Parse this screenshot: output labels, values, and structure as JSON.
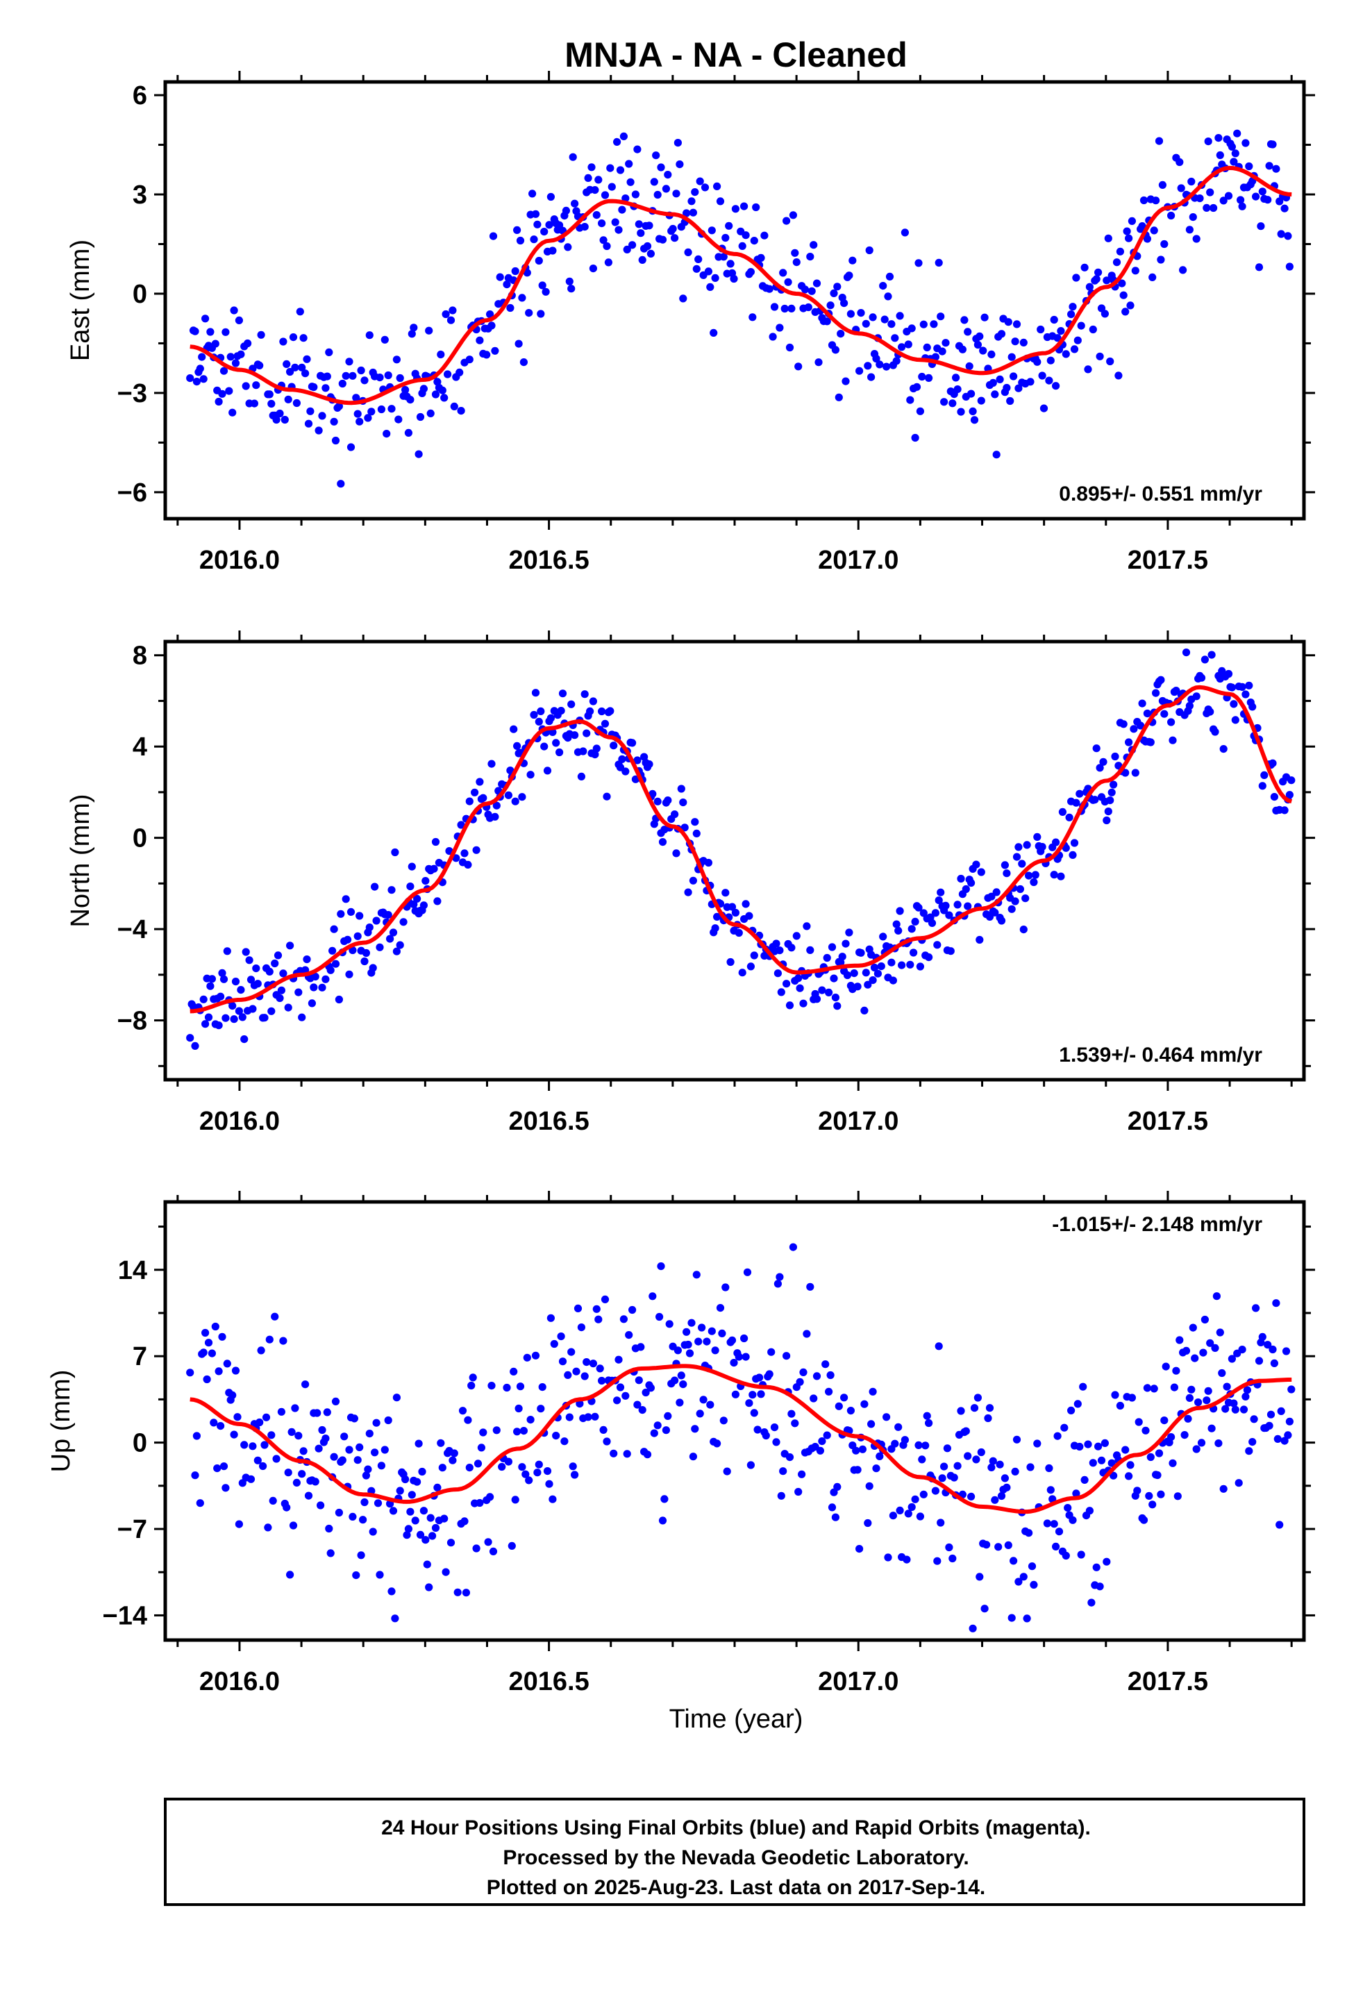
{
  "chart_data": {
    "type": "scatter",
    "title": "MNJA  - NA - Cleaned",
    "xlabel": "Time (year)",
    "xlim": [
      2015.88,
      2017.72
    ],
    "x_ticks": [
      2016.0,
      2016.5,
      2017.0,
      2017.5
    ],
    "x_tick_labels": [
      "2016.0",
      "2016.5",
      "2017.0",
      "2017.5"
    ],
    "grid": false,
    "legend": "none",
    "colors": {
      "final_orbits": "#0000ff",
      "rapid_orbits": "#ff00ff",
      "fit": "#ff0000"
    },
    "panels": [
      {
        "ylabel": "East (mm)",
        "ylim": [
          -6.8,
          6.4
        ],
        "y_ticks": [
          -6,
          -3,
          0,
          3,
          6
        ],
        "y_tick_labels": [
          "−6",
          "−3",
          "0",
          "3",
          "6"
        ],
        "rate": "0.895+/- 0.551 mm/yr",
        "fit_curve": {
          "x": [
            2015.92,
            2016.0,
            2016.08,
            2016.18,
            2016.3,
            2016.4,
            2016.5,
            2016.6,
            2016.7,
            2016.8,
            2016.9,
            2017.0,
            2017.1,
            2017.2,
            2017.3,
            2017.4,
            2017.5,
            2017.6,
            2017.7
          ],
          "y": [
            -1.6,
            -2.3,
            -2.9,
            -3.3,
            -2.6,
            -0.8,
            1.6,
            2.8,
            2.4,
            1.2,
            0.0,
            -1.2,
            -2.0,
            -2.4,
            -1.8,
            0.2,
            2.6,
            3.8,
            3.0
          ]
        },
        "scatter": {
          "amplitude": 1.0,
          "seed": 11
        }
      },
      {
        "ylabel": "North (mm)",
        "ylim": [
          -10.6,
          8.6
        ],
        "y_ticks": [
          -8,
          -4,
          0,
          4,
          8
        ],
        "y_tick_labels": [
          "−8",
          "−4",
          "0",
          "4",
          "8"
        ],
        "rate": "1.539+/- 0.464 mm/yr",
        "fit_curve": {
          "x": [
            2015.92,
            2016.0,
            2016.1,
            2016.2,
            2016.3,
            2016.4,
            2016.5,
            2016.55,
            2016.6,
            2016.7,
            2016.8,
            2016.9,
            2017.0,
            2017.1,
            2017.2,
            2017.3,
            2017.4,
            2017.5,
            2017.55,
            2017.6,
            2017.7
          ],
          "y": [
            -7.6,
            -7.1,
            -6.0,
            -4.6,
            -2.3,
            1.5,
            4.8,
            5.1,
            4.4,
            0.5,
            -3.8,
            -5.9,
            -5.6,
            -4.4,
            -3.1,
            -1.0,
            2.5,
            5.8,
            6.6,
            6.3,
            1.6
          ]
        },
        "scatter": {
          "amplitude": 0.9,
          "seed": 23
        }
      },
      {
        "ylabel": "Up (mm)",
        "ylim": [
          -16,
          19.5
        ],
        "y_ticks": [
          -14,
          -7,
          0,
          7,
          14
        ],
        "y_tick_labels": [
          "−14",
          "−7",
          "0",
          "7",
          "14"
        ],
        "rate": "-1.015+/- 2.148 mm/yr",
        "fit_curve": {
          "x": [
            2015.92,
            2016.0,
            2016.1,
            2016.2,
            2016.27,
            2016.35,
            2016.45,
            2016.55,
            2016.65,
            2016.72,
            2016.85,
            2017.0,
            2017.1,
            2017.2,
            2017.27,
            2017.35,
            2017.45,
            2017.55,
            2017.65,
            2017.7
          ],
          "y": [
            3.5,
            1.5,
            -1.5,
            -4.2,
            -4.8,
            -3.8,
            -0.5,
            3.5,
            6.0,
            6.2,
            4.5,
            0.5,
            -2.8,
            -5.2,
            -5.6,
            -4.5,
            -1.0,
            2.8,
            5.0,
            5.1
          ]
        },
        "scatter": {
          "amplitude": 4.0,
          "seed": 37
        }
      }
    ]
  },
  "footer": {
    "line1": "24 Hour Positions Using Final Orbits (blue) and Rapid Orbits (magenta).",
    "line2": "Processed by the Nevada Geodetic Laboratory.",
    "line3": "Plotted on 2025-Aug-23. Last data on 2017-Sep-14."
  }
}
